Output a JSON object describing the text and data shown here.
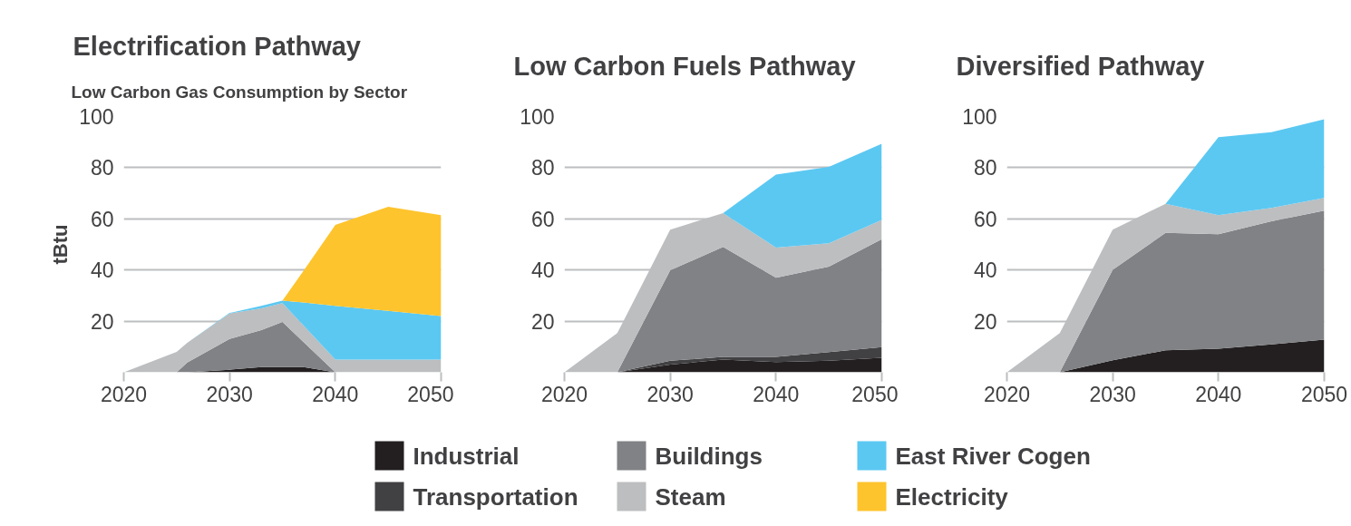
{
  "chart_data": [
    {
      "type": "area",
      "stacked": true,
      "title": "Electrification Pathway",
      "subtitle": "Low Carbon Gas Consumption by Sector",
      "ylabel": "tBtu",
      "x": [
        2020,
        2025,
        2026,
        2030,
        2033,
        2035,
        2037,
        2040,
        2045,
        2050
      ],
      "xlim": [
        2020,
        2050
      ],
      "xticks": [
        2020,
        2030,
        2040,
        2050
      ],
      "ylim": [
        0,
        100
      ],
      "yticks": [
        20,
        40,
        60,
        80,
        100
      ],
      "grid": "y",
      "legend": "bottom",
      "series": [
        {
          "name": "Industrial",
          "color": "#231f20",
          "values": [
            0,
            0,
            0,
            1,
            2,
            2,
            2,
            0,
            0,
            0
          ]
        },
        {
          "name": "Buildings",
          "color": "#808285",
          "values": [
            0,
            0,
            3.8,
            12,
            14.5,
            17.7,
            9.8,
            0,
            0,
            0
          ]
        },
        {
          "name": "Steam",
          "color": "#bcbec0",
          "values": [
            0,
            8,
            7.7,
            10,
            8.5,
            7.3,
            6.5,
            5,
            5,
            5
          ]
        },
        {
          "name": "East River Cogen",
          "color": "#5bc8f2",
          "values": [
            0,
            0,
            0,
            0.2,
            1,
            1,
            9,
            21,
            19,
            17
          ]
        },
        {
          "name": "Electricity",
          "color": "#fec42d",
          "values": [
            0,
            0,
            0,
            0,
            0,
            0,
            12.4,
            31.6,
            40.7,
            39.4
          ]
        }
      ]
    },
    {
      "type": "area",
      "stacked": true,
      "title": "Low Carbon Fuels Pathway",
      "x": [
        2020,
        2025,
        2030,
        2035,
        2040,
        2045,
        2050
      ],
      "xlim": [
        2020,
        2050
      ],
      "xticks": [
        2020,
        2030,
        2040,
        2050
      ],
      "ylim": [
        0,
        100
      ],
      "yticks": [
        20,
        40,
        60,
        80,
        100
      ],
      "grid": "y",
      "series": [
        {
          "name": "Industrial",
          "color": "#231f20",
          "values": [
            0,
            0,
            3,
            5,
            4,
            4.5,
            5.7
          ]
        },
        {
          "name": "Transportation",
          "color": "#414042",
          "values": [
            0,
            0,
            1.5,
            1,
            2,
            3.4,
            4.1
          ]
        },
        {
          "name": "Buildings",
          "color": "#808285",
          "values": [
            0,
            0,
            35.4,
            43,
            31,
            33.4,
            42.2
          ]
        },
        {
          "name": "Steam",
          "color": "#bcbec0",
          "values": [
            0,
            15.3,
            15.9,
            13.2,
            11.8,
            9.1,
            7.6
          ]
        },
        {
          "name": "East River Cogen",
          "color": "#5bc8f2",
          "values": [
            0,
            0,
            0,
            0,
            28.5,
            29.9,
            29.8
          ]
        }
      ]
    },
    {
      "type": "area",
      "stacked": true,
      "title": "Diversified Pathway",
      "x": [
        2020,
        2025,
        2030,
        2035,
        2040,
        2045,
        2050
      ],
      "xlim": [
        2020,
        2050
      ],
      "xticks": [
        2020,
        2030,
        2040,
        2050
      ],
      "ylim": [
        0,
        100
      ],
      "yticks": [
        20,
        40,
        60,
        80,
        100
      ],
      "grid": "y",
      "series": [
        {
          "name": "Industrial",
          "color": "#231f20",
          "values": [
            0,
            0,
            4.7,
            8.6,
            9.2,
            10.9,
            12.8
          ]
        },
        {
          "name": "Buildings",
          "color": "#808285",
          "values": [
            0,
            0,
            35.4,
            45.9,
            44.8,
            48.1,
            50.4
          ]
        },
        {
          "name": "Steam",
          "color": "#bcbec0",
          "values": [
            0,
            15.3,
            15.7,
            11.4,
            7.4,
            5.3,
            5
          ]
        },
        {
          "name": "East River Cogen",
          "color": "#5bc8f2",
          "values": [
            0,
            0,
            0,
            0,
            30.5,
            29.6,
            30.7
          ]
        }
      ]
    }
  ]
}
